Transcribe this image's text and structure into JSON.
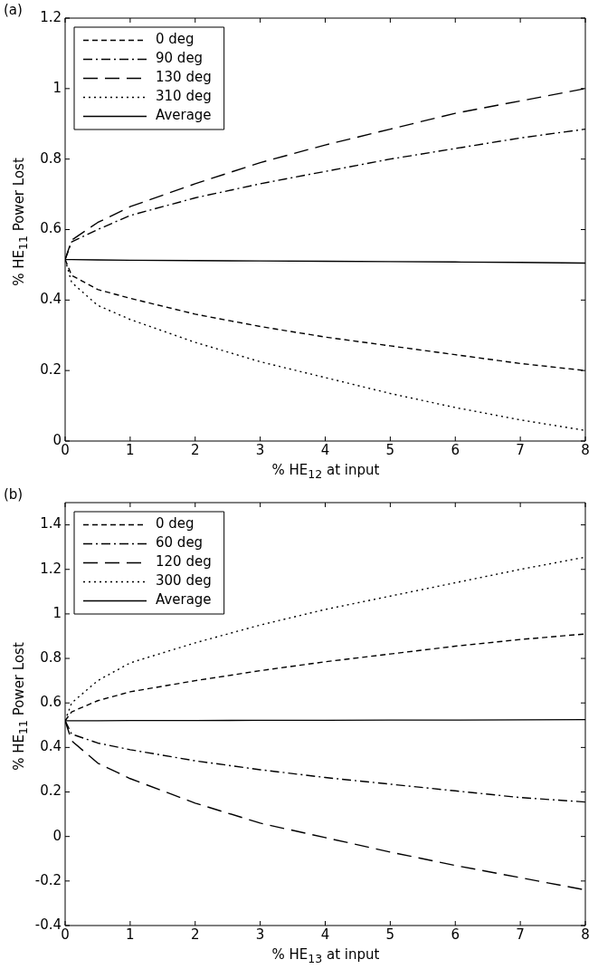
{
  "chart_data": [
    {
      "type": "line",
      "annotations": [
        "(a)"
      ],
      "xlabel": "% HE$_{12}$ at input",
      "ylabel": "% HE$_{11}$ Power Lost",
      "xlim": [
        0,
        8
      ],
      "xticks": [
        0,
        1,
        2,
        3,
        4,
        5,
        6,
        7,
        8
      ],
      "ylim": [
        0,
        1.2
      ],
      "yticks": [
        0,
        0.2,
        0.4,
        0.6,
        0.8,
        1,
        1.2
      ],
      "grid": false,
      "legend": "top left",
      "marker": "none",
      "x": [
        0,
        0.1,
        0.5,
        1,
        2,
        3,
        4,
        5,
        6,
        7,
        8
      ],
      "series": [
        {
          "name": "0 deg",
          "color": "#000000",
          "line_style": "dashed",
          "values": [
            0.515,
            0.47,
            0.43,
            0.405,
            0.36,
            0.325,
            0.295,
            0.27,
            0.245,
            0.22,
            0.2
          ]
        },
        {
          "name": "90 deg",
          "color": "#000000",
          "line_style": "dashdot",
          "values": [
            0.515,
            0.565,
            0.6,
            0.64,
            0.69,
            0.73,
            0.765,
            0.8,
            0.83,
            0.86,
            0.885
          ]
        },
        {
          "name": "130 deg",
          "color": "#000000",
          "line_style": "longdash",
          "values": [
            0.515,
            0.57,
            0.62,
            0.665,
            0.73,
            0.79,
            0.84,
            0.885,
            0.93,
            0.965,
            1.0
          ]
        },
        {
          "name": "310 deg",
          "color": "#000000",
          "line_style": "dotted",
          "values": [
            0.515,
            0.45,
            0.385,
            0.345,
            0.28,
            0.225,
            0.18,
            0.135,
            0.095,
            0.06,
            0.03
          ]
        },
        {
          "name": "Average",
          "color": "#000000",
          "line_style": "solid",
          "values": [
            0.515,
            0.515,
            0.514,
            0.513,
            0.512,
            0.511,
            0.51,
            0.509,
            0.508,
            0.507,
            0.505
          ]
        }
      ]
    },
    {
      "type": "line",
      "annotations": [
        "(b)"
      ],
      "xlabel": "% HE$_{13}$ at input",
      "ylabel": "% HE$_{11}$ Power Lost",
      "xlim": [
        0,
        8
      ],
      "xticks": [
        0,
        1,
        2,
        3,
        4,
        5,
        6,
        7,
        8
      ],
      "ylim": [
        -0.4,
        1.5
      ],
      "yticks": [
        -0.4,
        -0.2,
        0,
        0.2,
        0.4,
        0.6,
        0.8,
        1,
        1.2,
        1.4
      ],
      "grid": false,
      "legend": "top left",
      "marker": "none",
      "x": [
        0,
        0.1,
        0.5,
        1,
        2,
        3,
        4,
        5,
        6,
        7,
        8
      ],
      "series": [
        {
          "name": "0 deg",
          "color": "#000000",
          "line_style": "dashed",
          "values": [
            0.52,
            0.56,
            0.61,
            0.65,
            0.7,
            0.745,
            0.785,
            0.82,
            0.855,
            0.885,
            0.91
          ]
        },
        {
          "name": "60 deg",
          "color": "#000000",
          "line_style": "dashdot",
          "values": [
            0.52,
            0.46,
            0.42,
            0.39,
            0.34,
            0.3,
            0.265,
            0.235,
            0.205,
            0.175,
            0.155
          ]
        },
        {
          "name": "120 deg",
          "color": "#000000",
          "line_style": "longdash",
          "values": [
            0.52,
            0.43,
            0.33,
            0.26,
            0.15,
            0.06,
            -0.005,
            -0.07,
            -0.13,
            -0.185,
            -0.24
          ]
        },
        {
          "name": "300 deg",
          "color": "#000000",
          "line_style": "dotted",
          "values": [
            0.52,
            0.6,
            0.7,
            0.78,
            0.87,
            0.95,
            1.02,
            1.08,
            1.14,
            1.2,
            1.255
          ]
        },
        {
          "name": "Average",
          "color": "#000000",
          "line_style": "solid",
          "values": [
            0.52,
            0.52,
            0.52,
            0.521,
            0.521,
            0.522,
            0.522,
            0.523,
            0.523,
            0.524,
            0.525
          ]
        }
      ]
    }
  ]
}
